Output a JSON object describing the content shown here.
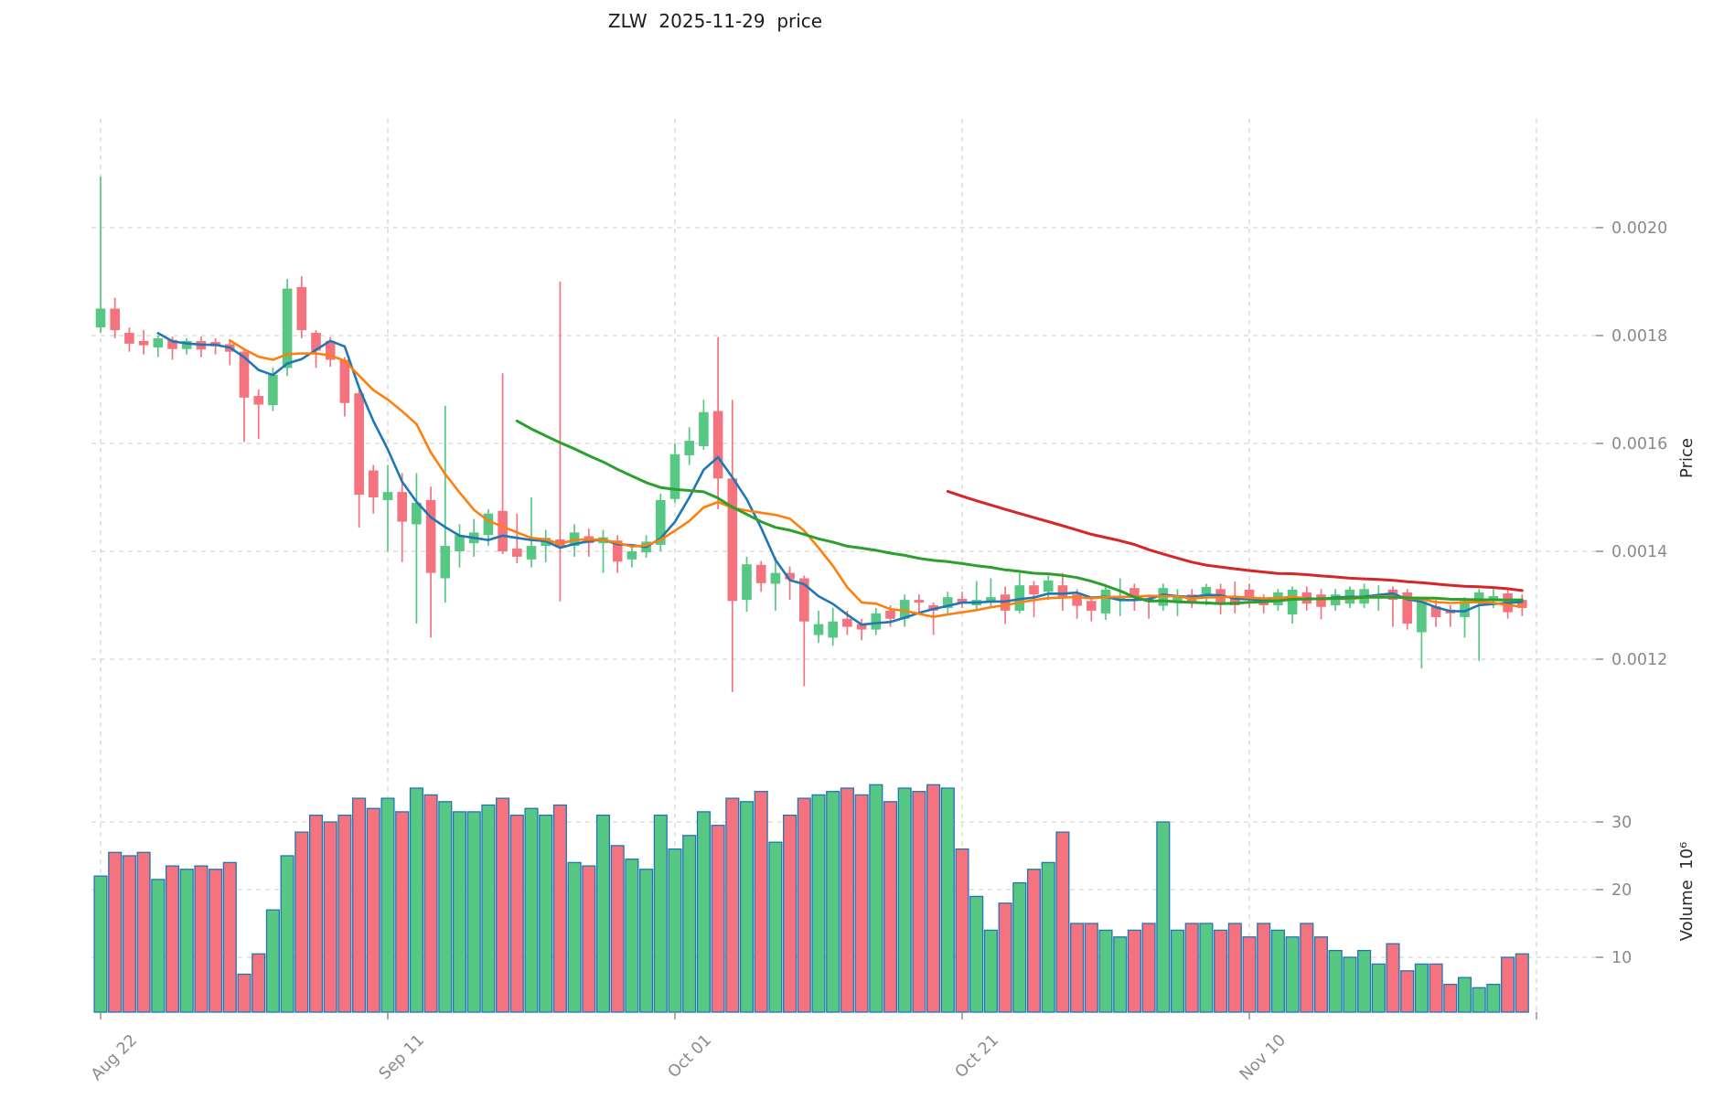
{
  "chart_data": {
    "type": "candlestick",
    "title": "ZLW  2025-11-29  price",
    "symbol": "ZLW",
    "date": "2025-11-29",
    "ylabel_price": "Price",
    "ylabel_volume": "Volume  10⁶",
    "volume_unit_multiplier": 1000000,
    "legend_position": "none",
    "grid": "dashed",
    "price_axis_side": "right",
    "price_ticks": [
      {
        "value": 0.0012,
        "label": "0.0012"
      },
      {
        "value": 0.0014,
        "label": "0.0014"
      },
      {
        "value": 0.0016,
        "label": "0.0016"
      },
      {
        "value": 0.0018,
        "label": "0.0018"
      },
      {
        "value": 0.002,
        "label": "0.0020"
      }
    ],
    "volume_ticks": [
      {
        "value": 10,
        "label": "10"
      },
      {
        "value": 20,
        "label": "20"
      },
      {
        "value": 30,
        "label": "30"
      }
    ],
    "x_ticks": [
      {
        "index": 0,
        "label": "Aug 22"
      },
      {
        "index": 20,
        "label": "Sep 11"
      },
      {
        "index": 40,
        "label": "Oct 01"
      },
      {
        "index": 60,
        "label": "Oct 21"
      },
      {
        "index": 80,
        "label": "Nov 10"
      },
      {
        "index": 100,
        "label": ""
      }
    ],
    "price_range": [
      0.00108,
      0.00222
    ],
    "volume_range": [
      0,
      38
    ],
    "start_date": "2025-08-22",
    "end_date": "2025-11-29",
    "moving_averages": [
      {
        "window": 5,
        "color": "#1f77b4",
        "width": 2.6
      },
      {
        "window": 10,
        "color": "#ff7f0e",
        "width": 2.6
      },
      {
        "window": 30,
        "color": "#2ca02c",
        "width": 3.0
      },
      {
        "window": 60,
        "color": "#d62728",
        "width": 3.0
      }
    ],
    "colors": {
      "up": "#57c784",
      "down": "#f4737f",
      "volume_edge": "#2076b4",
      "grid": "#cdcdcd",
      "tick_text": "#8a8a8a",
      "tick_mark": "#888888"
    },
    "ohlcv_columns": [
      "open",
      "high",
      "low",
      "close",
      "volume_millions"
    ],
    "ohlcv": [
      [
        0.001815,
        0.002095,
        0.001805,
        0.00185,
        22
      ],
      [
        0.00185,
        0.00187,
        0.001795,
        0.00181,
        25.5
      ],
      [
        0.001805,
        0.001815,
        0.00177,
        0.001785,
        25
      ],
      [
        0.00179,
        0.00181,
        0.001765,
        0.001782,
        25.5
      ],
      [
        0.001778,
        0.0018,
        0.00176,
        0.001795,
        21.5
      ],
      [
        0.001792,
        0.001798,
        0.001755,
        0.001775,
        23.5
      ],
      [
        0.001775,
        0.001795,
        0.001765,
        0.00179,
        23
      ],
      [
        0.00179,
        0.001798,
        0.00176,
        0.001774,
        23.5
      ],
      [
        0.001788,
        0.001795,
        0.001765,
        0.00178,
        23
      ],
      [
        0.001784,
        0.00179,
        0.001745,
        0.00177,
        24
      ],
      [
        0.00177,
        0.001775,
        0.001603,
        0.001685,
        7.5
      ],
      [
        0.001688,
        0.0017,
        0.001608,
        0.001672,
        10.5
      ],
      [
        0.001671,
        0.001741,
        0.00166,
        0.001727,
        17
      ],
      [
        0.00174,
        0.001905,
        0.001725,
        0.001887,
        25
      ],
      [
        0.00189,
        0.00191,
        0.001795,
        0.00181,
        28.5
      ],
      [
        0.001805,
        0.00181,
        0.00174,
        0.001772,
        31
      ],
      [
        0.00179,
        0.001797,
        0.001742,
        0.001755,
        30
      ],
      [
        0.001755,
        0.00176,
        0.00165,
        0.001675,
        31
      ],
      [
        0.001693,
        0.0017,
        0.001444,
        0.001505,
        33.5
      ],
      [
        0.00155,
        0.00156,
        0.00147,
        0.0015,
        32
      ],
      [
        0.001495,
        0.00156,
        0.0014,
        0.00151,
        33.5
      ],
      [
        0.00151,
        0.001545,
        0.00138,
        0.001455,
        31.5
      ],
      [
        0.00145,
        0.001545,
        0.001266,
        0.00149,
        35
      ],
      [
        0.001495,
        0.00152,
        0.00124,
        0.00136,
        34
      ],
      [
        0.00135,
        0.00167,
        0.001305,
        0.00141,
        33
      ],
      [
        0.0014,
        0.00145,
        0.00137,
        0.00143,
        31.5
      ],
      [
        0.001415,
        0.00146,
        0.00139,
        0.001435,
        31.5
      ],
      [
        0.00143,
        0.001478,
        0.00141,
        0.00147,
        32.5
      ],
      [
        0.001475,
        0.00173,
        0.001395,
        0.0014,
        33.5
      ],
      [
        0.001405,
        0.00147,
        0.001378,
        0.00139,
        31
      ],
      [
        0.001385,
        0.0015,
        0.00137,
        0.00141,
        32
      ],
      [
        0.00141,
        0.00144,
        0.00138,
        0.001425,
        31
      ],
      [
        0.001422,
        0.0019,
        0.001307,
        0.001408,
        32.5
      ],
      [
        0.00141,
        0.00145,
        0.00139,
        0.001435,
        24
      ],
      [
        0.001428,
        0.001442,
        0.00139,
        0.001415,
        23.5
      ],
      [
        0.001415,
        0.00144,
        0.00136,
        0.001426,
        31
      ],
      [
        0.00142,
        0.00143,
        0.00136,
        0.001381,
        26.5
      ],
      [
        0.001385,
        0.00141,
        0.00137,
        0.0014,
        24.5
      ],
      [
        0.001398,
        0.00143,
        0.001388,
        0.001418,
        23
      ],
      [
        0.001412,
        0.001507,
        0.0014,
        0.001495,
        31
      ],
      [
        0.001497,
        0.0016,
        0.00149,
        0.00158,
        26
      ],
      [
        0.001578,
        0.00163,
        0.00156,
        0.001605,
        28
      ],
      [
        0.001595,
        0.001681,
        0.001588,
        0.001658,
        31.5
      ],
      [
        0.00166,
        0.001797,
        0.001478,
        0.001535,
        29.5
      ],
      [
        0.001535,
        0.001681,
        0.001139,
        0.001308,
        33.5
      ],
      [
        0.00131,
        0.00139,
        0.001288,
        0.001376,
        33
      ],
      [
        0.001375,
        0.001382,
        0.001325,
        0.001341,
        34.5
      ],
      [
        0.00134,
        0.00139,
        0.00129,
        0.00136,
        27
      ],
      [
        0.00136,
        0.001372,
        0.00131,
        0.001348,
        31
      ],
      [
        0.00135,
        0.001355,
        0.00115,
        0.00127,
        33.5
      ],
      [
        0.001245,
        0.00129,
        0.00123,
        0.001265,
        34
      ],
      [
        0.00124,
        0.001295,
        0.001225,
        0.00127,
        34.5
      ],
      [
        0.001275,
        0.00129,
        0.001245,
        0.00126,
        35
      ],
      [
        0.001265,
        0.001275,
        0.001235,
        0.001255,
        34
      ],
      [
        0.001255,
        0.001295,
        0.001245,
        0.001285,
        35.5
      ],
      [
        0.00129,
        0.0013,
        0.00126,
        0.001275,
        33
      ],
      [
        0.001275,
        0.00132,
        0.00126,
        0.00131,
        35
      ],
      [
        0.00131,
        0.00132,
        0.001285,
        0.001305,
        34.5
      ],
      [
        0.0013,
        0.001305,
        0.001245,
        0.00129,
        35.5
      ],
      [
        0.001295,
        0.001325,
        0.001285,
        0.001315,
        35
      ],
      [
        0.001312,
        0.001325,
        0.001295,
        0.001305,
        26
      ],
      [
        0.0013,
        0.001345,
        0.00129,
        0.00131,
        19
      ],
      [
        0.001305,
        0.00135,
        0.001295,
        0.001315,
        14
      ],
      [
        0.00132,
        0.001335,
        0.001265,
        0.00129,
        18
      ],
      [
        0.00129,
        0.00136,
        0.001285,
        0.001337,
        21
      ],
      [
        0.001337,
        0.001345,
        0.001278,
        0.00132,
        23
      ],
      [
        0.001325,
        0.001355,
        0.00131,
        0.001346,
        24
      ],
      [
        0.001337,
        0.00136,
        0.00129,
        0.001315,
        28.5
      ],
      [
        0.00132,
        0.00133,
        0.001275,
        0.001299,
        15
      ],
      [
        0.001308,
        0.001315,
        0.00127,
        0.00129,
        15
      ],
      [
        0.001285,
        0.001335,
        0.001273,
        0.001329,
        14
      ],
      [
        0.00131,
        0.00135,
        0.00128,
        0.001315,
        13
      ],
      [
        0.001332,
        0.00134,
        0.00129,
        0.001315,
        14
      ],
      [
        0.001312,
        0.00132,
        0.001275,
        0.001308,
        15
      ],
      [
        0.001299,
        0.00134,
        0.00129,
        0.001332,
        30
      ],
      [
        0.001305,
        0.00133,
        0.00128,
        0.001315,
        14
      ],
      [
        0.00132,
        0.00133,
        0.001295,
        0.001307,
        15
      ],
      [
        0.001321,
        0.00134,
        0.0013,
        0.001334,
        15
      ],
      [
        0.00133,
        0.00134,
        0.001283,
        0.001305,
        14
      ],
      [
        0.001317,
        0.001344,
        0.001285,
        0.0013,
        15
      ],
      [
        0.001329,
        0.00134,
        0.001295,
        0.00131,
        13
      ],
      [
        0.00131,
        0.00132,
        0.001285,
        0.0013,
        15
      ],
      [
        0.0013,
        0.00133,
        0.00129,
        0.001324,
        14
      ],
      [
        0.001283,
        0.001335,
        0.001266,
        0.001329,
        13
      ],
      [
        0.001324,
        0.001335,
        0.00129,
        0.001303,
        15
      ],
      [
        0.00132,
        0.00133,
        0.001274,
        0.001297,
        13
      ],
      [
        0.0013,
        0.00133,
        0.00129,
        0.00132,
        11
      ],
      [
        0.001303,
        0.001335,
        0.001295,
        0.001329,
        10
      ],
      [
        0.001303,
        0.00134,
        0.001295,
        0.00133,
        11
      ],
      [
        0.001315,
        0.001337,
        0.00129,
        0.00132,
        9
      ],
      [
        0.001329,
        0.001335,
        0.00126,
        0.00131,
        12
      ],
      [
        0.001324,
        0.00133,
        0.001255,
        0.001266,
        8
      ],
      [
        0.00125,
        0.001315,
        0.001183,
        0.001307,
        9
      ],
      [
        0.001298,
        0.00131,
        0.00126,
        0.001278,
        9
      ],
      [
        0.001292,
        0.0013,
        0.00126,
        0.001285,
        6
      ],
      [
        0.001278,
        0.001315,
        0.00124,
        0.001308,
        7
      ],
      [
        0.001308,
        0.00133,
        0.001197,
        0.001324,
        5.5
      ],
      [
        0.00131,
        0.00133,
        0.001295,
        0.001317,
        6
      ],
      [
        0.001322,
        0.00133,
        0.001275,
        0.001287,
        10
      ],
      [
        0.00131,
        0.00132,
        0.00128,
        0.001295,
        10.5
      ]
    ]
  }
}
